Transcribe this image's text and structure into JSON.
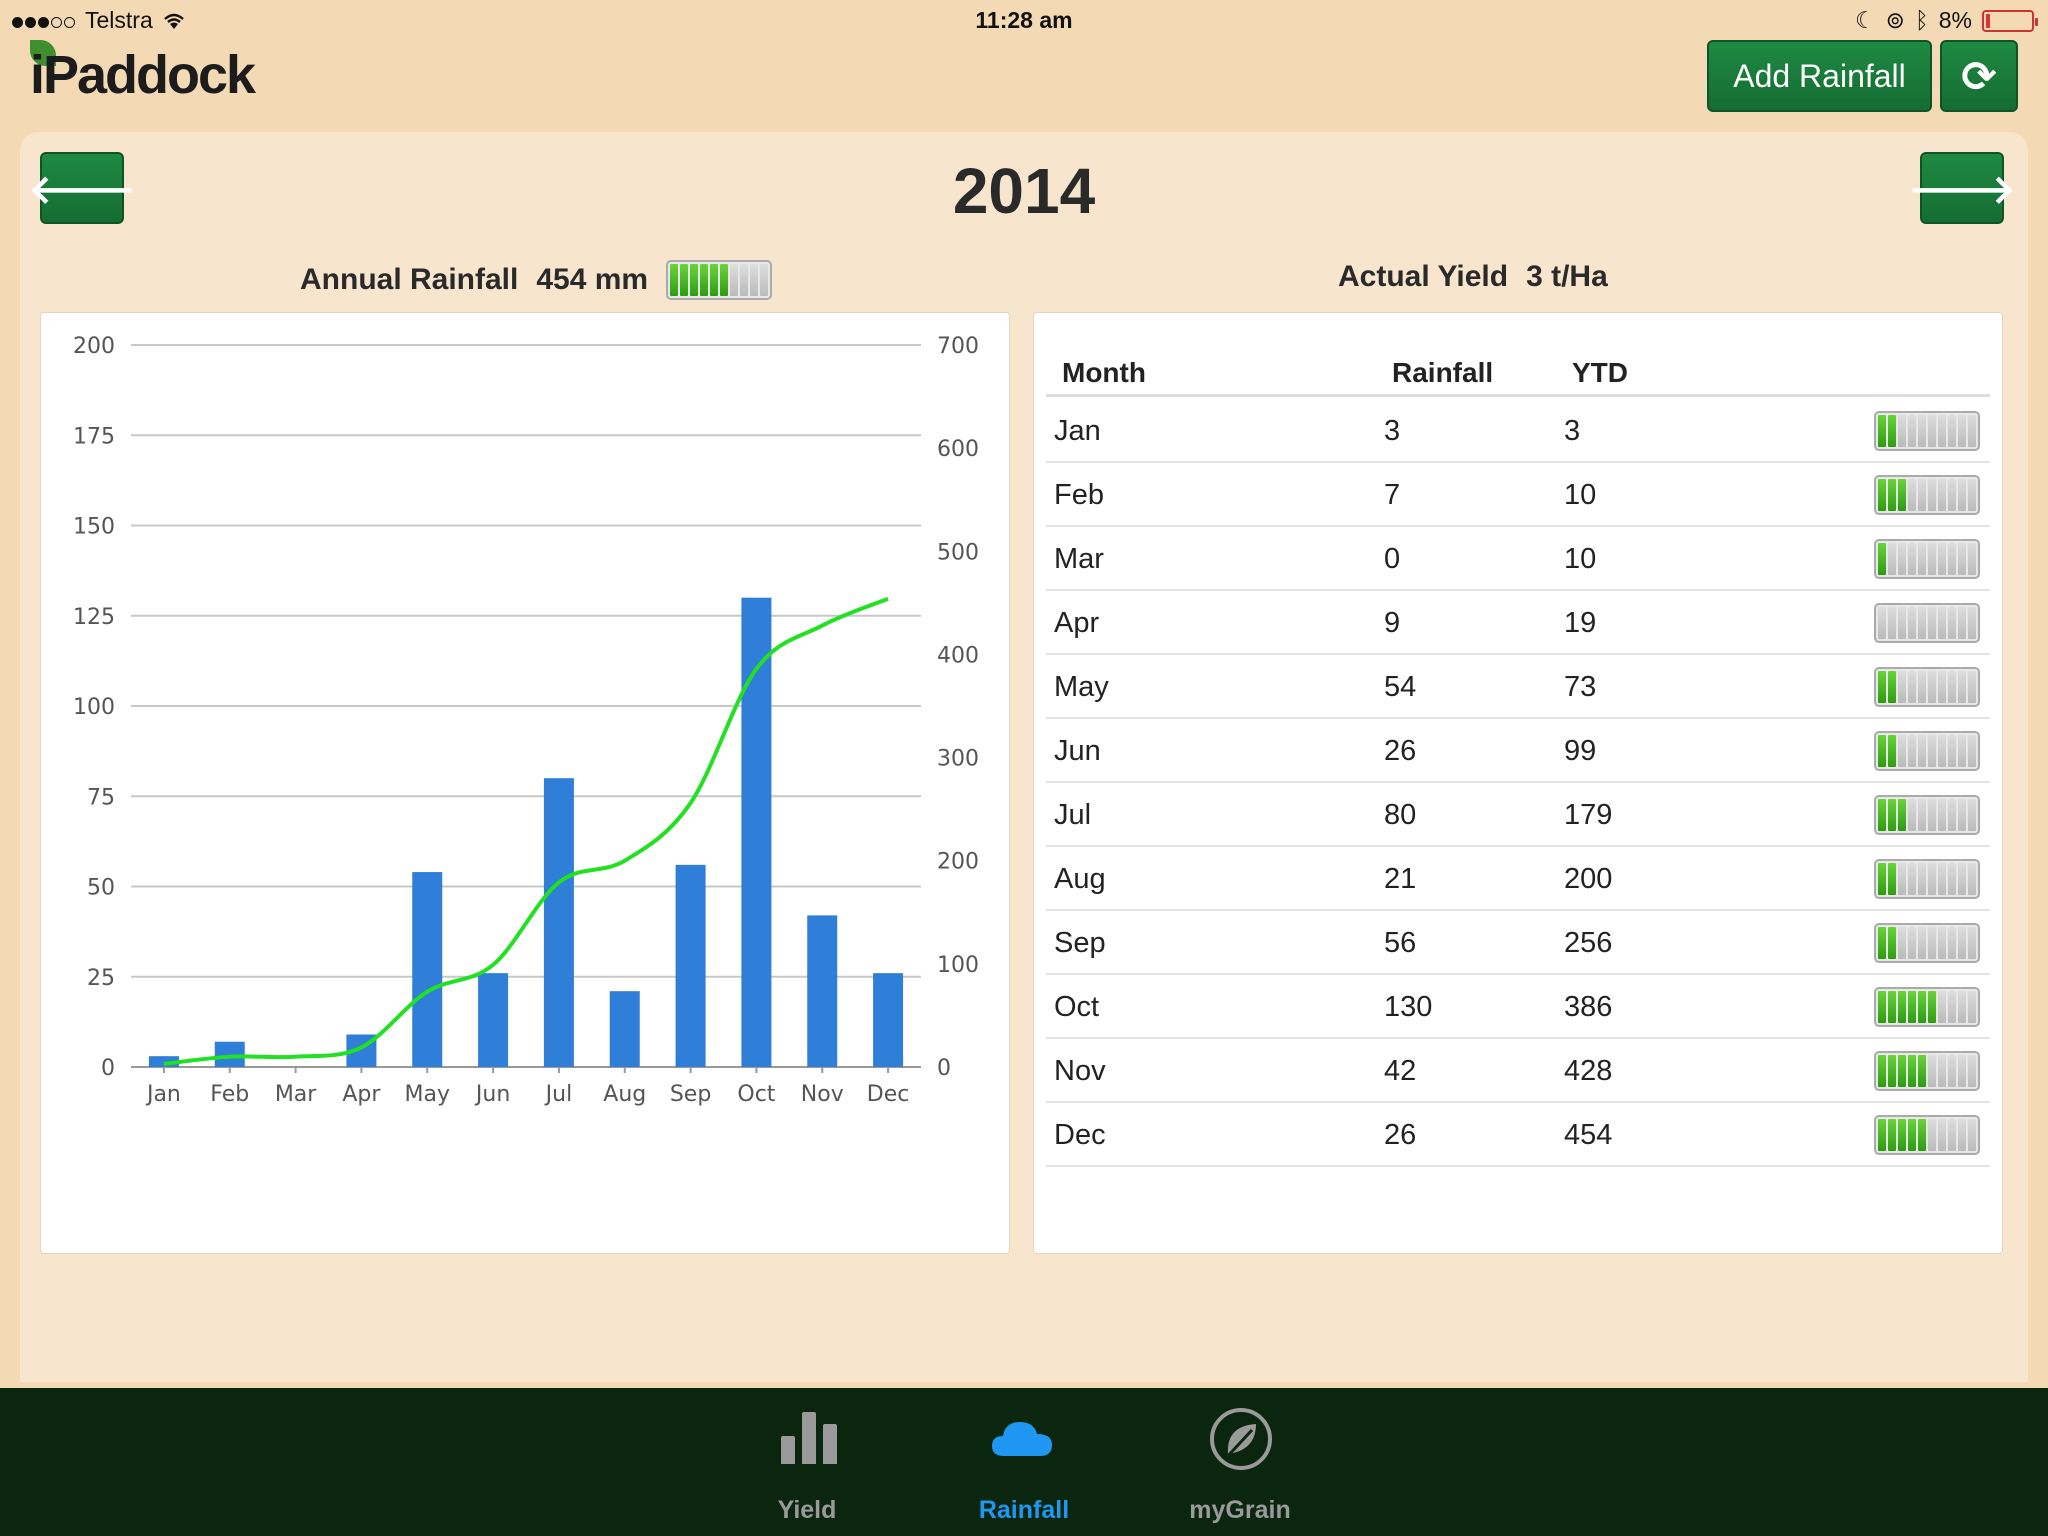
{
  "status": {
    "carrier": "Telstra",
    "time": "11:28 am",
    "battery": "8%",
    "battery_level": 0.08
  },
  "header": {
    "logo_text": "iPaddock",
    "add_rainfall_label": "Add Rainfall",
    "refresh_icon": "refresh-icon"
  },
  "nav": {
    "year": "2014",
    "prev_icon": "arrow-left-icon",
    "next_icon": "arrow-right-icon"
  },
  "summary": {
    "annual_label": "Annual Rainfall",
    "annual_value": "454 mm",
    "annual_gauge": 6,
    "yield_label": "Actual Yield",
    "yield_value": "3 t/Ha"
  },
  "chart_data": {
    "type": "bar",
    "categories": [
      "Jan",
      "Feb",
      "Mar",
      "Apr",
      "May",
      "Jun",
      "Jul",
      "Aug",
      "Sep",
      "Oct",
      "Nov",
      "Dec"
    ],
    "series": [
      {
        "values": [
          3,
          7,
          0,
          9,
          54,
          26,
          80,
          21,
          56,
          130,
          42,
          26
        ],
        "color": "#2f7ed8",
        "axis": "left",
        "kind": "bar"
      },
      {
        "values": [
          3,
          10,
          10,
          19,
          73,
          99,
          179,
          200,
          256,
          386,
          428,
          454
        ],
        "color": "#22e022",
        "axis": "right",
        "kind": "line"
      }
    ],
    "y_left_ticks": [
      "0",
      "25",
      "50",
      "75",
      "100",
      "125",
      "150",
      "175",
      "200"
    ],
    "y_right_ticks": [
      "0",
      "100",
      "200",
      "300",
      "400",
      "500",
      "600",
      "700"
    ],
    "ylim_left": [
      0,
      200
    ],
    "ylim_right": [
      0,
      700
    ],
    "grid": true
  },
  "table": {
    "headers": {
      "month": "Month",
      "rainfall": "Rainfall",
      "ytd": "YTD"
    },
    "rows": [
      {
        "month": "Jan",
        "rainfall": "3",
        "ytd": "3",
        "gauge": 2
      },
      {
        "month": "Feb",
        "rainfall": "7",
        "ytd": "10",
        "gauge": 3
      },
      {
        "month": "Mar",
        "rainfall": "0",
        "ytd": "10",
        "gauge": 1
      },
      {
        "month": "Apr",
        "rainfall": "9",
        "ytd": "19",
        "gauge": 0
      },
      {
        "month": "May",
        "rainfall": "54",
        "ytd": "73",
        "gauge": 2
      },
      {
        "month": "Jun",
        "rainfall": "26",
        "ytd": "99",
        "gauge": 2
      },
      {
        "month": "Jul",
        "rainfall": "80",
        "ytd": "179",
        "gauge": 3
      },
      {
        "month": "Aug",
        "rainfall": "21",
        "ytd": "200",
        "gauge": 2
      },
      {
        "month": "Sep",
        "rainfall": "56",
        "ytd": "256",
        "gauge": 2
      },
      {
        "month": "Oct",
        "rainfall": "130",
        "ytd": "386",
        "gauge": 6
      },
      {
        "month": "Nov",
        "rainfall": "42",
        "ytd": "428",
        "gauge": 5
      },
      {
        "month": "Dec",
        "rainfall": "26",
        "ytd": "454",
        "gauge": 5
      }
    ]
  },
  "tabs": [
    {
      "label": "Yield",
      "icon": "bar-chart-icon",
      "active": false
    },
    {
      "label": "Rainfall",
      "icon": "cloud-icon",
      "active": true
    },
    {
      "label": "myGrain",
      "icon": "leaf-icon",
      "active": false
    }
  ],
  "colors": {
    "accent": "#1e8a42",
    "active_tab": "#1f96f1",
    "tab_bg": "#0b260f"
  }
}
